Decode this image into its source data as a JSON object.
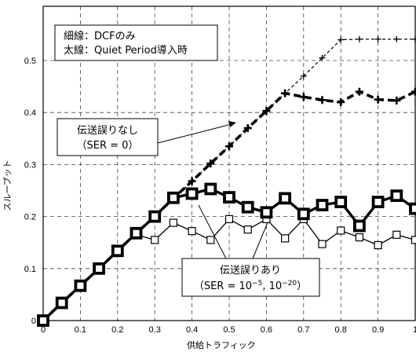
{
  "chart_data": {
    "type": "line",
    "xlabel": "供給トラフィック",
    "ylabel": "スループット",
    "xlim": [
      0,
      1
    ],
    "ylim": [
      0,
      0.55
    ],
    "xticks": [
      "0",
      "0.1",
      "0.2",
      "0.3",
      "0.4",
      "0.5",
      "0.6",
      "0.7",
      "0.8",
      "0.9",
      "1"
    ],
    "yticks": [
      "0",
      "0.1",
      "0.2",
      "0.3",
      "0.4",
      "0.5"
    ],
    "grid": true,
    "legend": {
      "position": "top-left",
      "line1": "細線：DCFのみ",
      "line2": "太線：Quiet Period導入時"
    },
    "annotations": {
      "no_error_line1": "伝送誤りなし",
      "no_error_line2": "（SER = 0）",
      "error_line1": "伝送誤りあり",
      "error_line2_pre": "（SER = 10",
      "error_exp1": "−5",
      "error_mid": ", 10",
      "error_exp2": "−20",
      "error_end": "）"
    },
    "x": [
      0,
      0.05,
      0.1,
      0.15,
      0.2,
      0.25,
      0.3,
      0.35,
      0.4,
      0.45,
      0.5,
      0.55,
      0.6,
      0.65,
      0.7,
      0.75,
      0.8,
      0.85,
      0.9,
      0.95,
      1.0
    ],
    "series": [
      {
        "style": "thin-dashed-plus",
        "values": [
          0,
          0.034,
          0.067,
          0.1,
          0.134,
          0.168,
          0.2,
          0.235,
          0.268,
          0.302,
          0.335,
          0.37,
          0.403,
          0.437,
          0.47,
          0.505,
          0.54,
          0.541,
          0.541,
          0.541,
          0.541
        ]
      },
      {
        "style": "thick-dashed-plus",
        "values": [
          0,
          0.034,
          0.067,
          0.1,
          0.134,
          0.168,
          0.2,
          0.235,
          0.268,
          0.302,
          0.335,
          0.37,
          0.403,
          0.437,
          0.43,
          0.424,
          0.42,
          0.44,
          0.425,
          0.423,
          0.44
        ]
      },
      {
        "style": "thin-solid-square",
        "values": [
          0,
          0.034,
          0.067,
          0.1,
          0.134,
          0.165,
          0.155,
          0.188,
          0.172,
          0.155,
          0.195,
          0.175,
          0.195,
          0.158,
          0.195,
          0.147,
          0.173,
          0.16,
          0.145,
          0.165,
          0.155
        ]
      },
      {
        "style": "thick-solid-square",
        "values": [
          0,
          0.034,
          0.067,
          0.1,
          0.134,
          0.168,
          0.2,
          0.236,
          0.244,
          0.253,
          0.237,
          0.218,
          0.208,
          0.235,
          0.205,
          0.222,
          0.228,
          0.182,
          0.228,
          0.24,
          0.215
        ]
      }
    ]
  }
}
